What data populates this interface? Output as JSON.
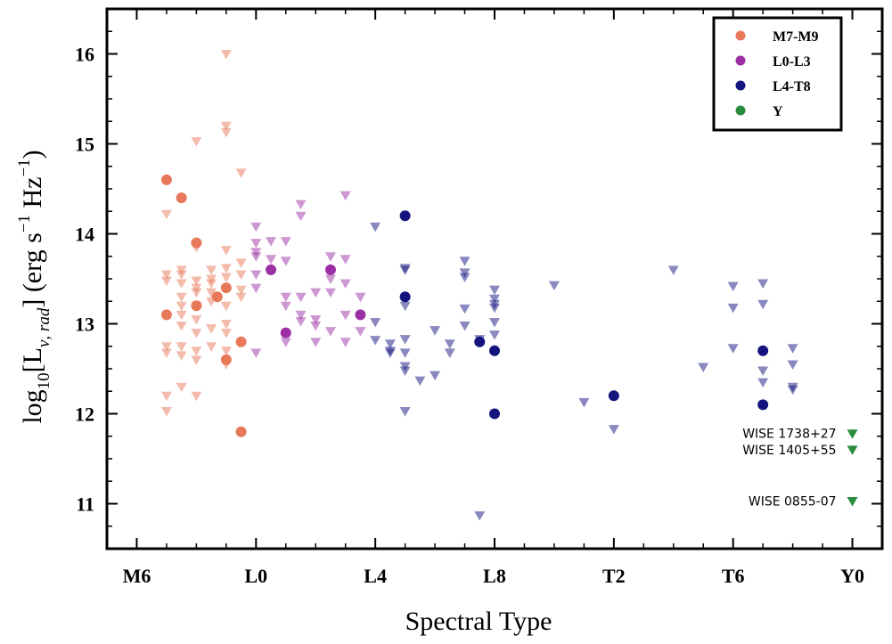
{
  "chart_data": {
    "type": "scatter",
    "xlabel": "Spectral Type",
    "ylabel": "log10[Lν, rad] (erg s−1 Hz−1)",
    "ylabel_parts": {
      "a": "log",
      "b": "10",
      "c": "[L",
      "d": "ν, rad",
      "e": "] (erg s",
      "f": "−1",
      "g": " Hz",
      "h": "−1",
      "i": ")"
    },
    "x_tick_labels": [
      "M6",
      "L0",
      "L4",
      "L8",
      "T2",
      "T6",
      "Y0"
    ],
    "x_tick_values": [
      6,
      10,
      14,
      18,
      22,
      26,
      30
    ],
    "x_encoding": "M6..M9 = 6..9, L0..L9 = 10..19, T0..T9 = 20..29, Y0 = 30",
    "y_tick_labels": [
      "11",
      "12",
      "13",
      "14",
      "15",
      "16"
    ],
    "xlim": [
      5,
      31
    ],
    "ylim": [
      10.5,
      16.5
    ],
    "grid": false,
    "legend_placement": "top-right",
    "legend": [
      {
        "label": "M7-M9",
        "color": "#e8785a"
      },
      {
        "label": "L0-L3",
        "color": "#9b2fa3"
      },
      {
        "label": "L4-T8",
        "color": "#14147f"
      },
      {
        "label": "Y",
        "color": "#2a8c3c"
      }
    ],
    "series": [
      {
        "name": "M7-M9",
        "color": "#e8785a",
        "detections": [
          [
            7,
            14.6
          ],
          [
            7.5,
            14.4
          ],
          [
            8,
            13.9
          ],
          [
            7,
            13.1
          ],
          [
            8,
            13.2
          ],
          [
            8.7,
            13.3
          ],
          [
            9,
            13.4
          ],
          [
            9,
            12.6
          ],
          [
            9.5,
            12.8
          ],
          [
            9.5,
            11.8
          ]
        ],
        "upper_limits": [
          [
            7,
            14.22
          ],
          [
            7,
            13.55
          ],
          [
            7,
            13.48
          ],
          [
            7,
            12.75
          ],
          [
            7,
            12.68
          ],
          [
            7,
            12.2
          ],
          [
            7,
            12.03
          ],
          [
            7.5,
            13.6
          ],
          [
            7.5,
            13.55
          ],
          [
            7.5,
            13.45
          ],
          [
            7.5,
            13.3
          ],
          [
            7.5,
            13.2
          ],
          [
            7.5,
            13.1
          ],
          [
            7.5,
            12.98
          ],
          [
            7.5,
            12.75
          ],
          [
            7.5,
            12.65
          ],
          [
            7.5,
            12.3
          ],
          [
            8,
            15.03
          ],
          [
            8,
            13.85
          ],
          [
            8,
            13.48
          ],
          [
            8,
            13.4
          ],
          [
            8,
            13.35
          ],
          [
            8,
            13.2
          ],
          [
            8,
            13.05
          ],
          [
            8,
            12.9
          ],
          [
            8,
            12.7
          ],
          [
            8,
            12.6
          ],
          [
            8,
            12.2
          ],
          [
            8.5,
            13.6
          ],
          [
            8.5,
            13.5
          ],
          [
            8.5,
            13.45
          ],
          [
            8.5,
            13.35
          ],
          [
            8.5,
            13.25
          ],
          [
            8.5,
            12.95
          ],
          [
            8.5,
            12.75
          ],
          [
            9,
            16.0
          ],
          [
            9,
            15.2
          ],
          [
            9,
            15.13
          ],
          [
            9,
            13.82
          ],
          [
            9,
            13.62
          ],
          [
            9,
            13.52
          ],
          [
            9,
            13.2
          ],
          [
            9,
            13.0
          ],
          [
            9,
            12.9
          ],
          [
            9,
            12.7
          ],
          [
            9,
            12.55
          ],
          [
            9.5,
            14.68
          ],
          [
            9.5,
            13.68
          ],
          [
            9.5,
            13.55
          ],
          [
            9.5,
            13.38
          ],
          [
            9.5,
            13.3
          ]
        ]
      },
      {
        "name": "L0-L3",
        "color": "#9b2fa3",
        "detections": [
          [
            10.5,
            13.6
          ],
          [
            11,
            12.9
          ],
          [
            12.5,
            13.6
          ],
          [
            13.5,
            13.1
          ]
        ],
        "upper_limits": [
          [
            10,
            14.08
          ],
          [
            10,
            13.9
          ],
          [
            10,
            13.8
          ],
          [
            10,
            13.75
          ],
          [
            10,
            13.55
          ],
          [
            10,
            13.4
          ],
          [
            10,
            12.68
          ],
          [
            10.5,
            13.92
          ],
          [
            10.5,
            13.72
          ],
          [
            11,
            13.92
          ],
          [
            11,
            13.7
          ],
          [
            11,
            13.3
          ],
          [
            11,
            13.2
          ],
          [
            11,
            12.8
          ],
          [
            11.5,
            14.33
          ],
          [
            11.5,
            14.2
          ],
          [
            11.5,
            13.3
          ],
          [
            11.5,
            13.1
          ],
          [
            11.5,
            13.03
          ],
          [
            12,
            13.35
          ],
          [
            12,
            13.05
          ],
          [
            12,
            12.98
          ],
          [
            12,
            12.8
          ],
          [
            12.5,
            13.75
          ],
          [
            12.5,
            13.5
          ],
          [
            12.5,
            13.35
          ],
          [
            12.5,
            12.92
          ],
          [
            13,
            14.43
          ],
          [
            13,
            13.72
          ],
          [
            13,
            13.45
          ],
          [
            13,
            13.1
          ],
          [
            13,
            12.8
          ],
          [
            13.5,
            13.3
          ],
          [
            13.5,
            12.92
          ]
        ]
      },
      {
        "name": "L4-T8",
        "color": "#14147f",
        "detections": [
          [
            15,
            14.2
          ],
          [
            15,
            13.3
          ],
          [
            17.5,
            12.8
          ],
          [
            18,
            12.7
          ],
          [
            18,
            12.0
          ],
          [
            22,
            12.2
          ],
          [
            27,
            12.7
          ],
          [
            27,
            12.1
          ]
        ],
        "upper_limits": [
          [
            14,
            14.08
          ],
          [
            14,
            13.02
          ],
          [
            14,
            12.82
          ],
          [
            14.5,
            12.78
          ],
          [
            14.5,
            12.7
          ],
          [
            14.5,
            12.68
          ],
          [
            15,
            13.62
          ],
          [
            15,
            13.6
          ],
          [
            15,
            13.2
          ],
          [
            15,
            12.83
          ],
          [
            15,
            12.68
          ],
          [
            15,
            12.53
          ],
          [
            15,
            12.48
          ],
          [
            15,
            12.03
          ],
          [
            15.5,
            12.37
          ],
          [
            16,
            12.93
          ],
          [
            16,
            12.43
          ],
          [
            16.5,
            12.78
          ],
          [
            16.5,
            12.68
          ],
          [
            17,
            13.7
          ],
          [
            17,
            13.57
          ],
          [
            17,
            13.52
          ],
          [
            17,
            13.17
          ],
          [
            17,
            12.98
          ],
          [
            17.5,
            12.83
          ],
          [
            17.5,
            10.87
          ],
          [
            18,
            13.38
          ],
          [
            18,
            13.28
          ],
          [
            18,
            13.22
          ],
          [
            18,
            13.18
          ],
          [
            18,
            13.02
          ],
          [
            18,
            12.88
          ],
          [
            20,
            13.43
          ],
          [
            21,
            12.13
          ],
          [
            22,
            11.83
          ],
          [
            24,
            13.6
          ],
          [
            25,
            12.52
          ],
          [
            26,
            13.42
          ],
          [
            26,
            13.18
          ],
          [
            26,
            12.73
          ],
          [
            27,
            13.45
          ],
          [
            27,
            13.22
          ],
          [
            27,
            12.48
          ],
          [
            27,
            12.35
          ],
          [
            28,
            12.73
          ],
          [
            28,
            12.55
          ],
          [
            28,
            12.3
          ],
          [
            28,
            12.27
          ]
        ]
      },
      {
        "name": "Y",
        "color": "#2a8c3c",
        "detections": [],
        "upper_limits": [
          [
            30,
            11.78
          ],
          [
            30,
            11.6
          ],
          [
            30,
            11.03
          ]
        ]
      }
    ],
    "annotations": [
      {
        "text": "WISE 1738+27",
        "x": 30,
        "y": 11.78
      },
      {
        "text": "WISE 1405+55",
        "x": 30,
        "y": 11.6
      },
      {
        "text": "WISE 0855-07",
        "x": 30,
        "y": 11.03
      }
    ]
  }
}
